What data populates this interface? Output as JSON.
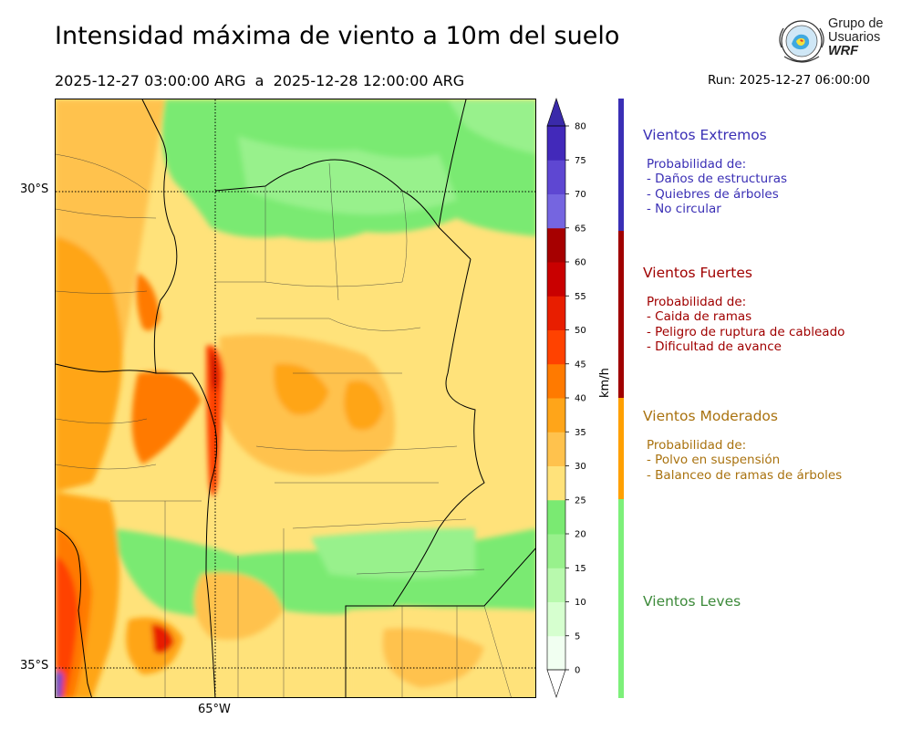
{
  "header": {
    "title": "Intensidad máxima de viento a 10m del suelo",
    "subtitle": "2025-12-27 03:00:00 ARG  a  2025-12-28 12:00:00 ARG",
    "run": "Run: 2025-12-27 06:00:00"
  },
  "logo": {
    "line1": "Grupo de",
    "line2": "Usuarios",
    "line3": "WRF"
  },
  "map": {
    "lat_labels": [
      "30°S",
      "35°S"
    ],
    "lon_labels": [
      "65°W"
    ]
  },
  "colorbar": {
    "unit": "km/h",
    "ticks": [
      "0",
      "5",
      "10",
      "15",
      "20",
      "25",
      "30",
      "35",
      "40",
      "45",
      "50",
      "55",
      "60",
      "65",
      "70",
      "75",
      "80"
    ],
    "colors": [
      "#f1fff1",
      "#d6ffcf",
      "#b8f9ad",
      "#98f18c",
      "#7aea72",
      "#ffe27a",
      "#ffc24d",
      "#ffa519",
      "#ff7a00",
      "#ff4200",
      "#e81e00",
      "#c90000",
      "#a60000",
      "#7565e0",
      "#5e47d2",
      "#4229ba"
    ]
  },
  "legend": {
    "categories": [
      {
        "title": "Vientos Extremos",
        "color": "#3a2fb5",
        "lines": "Probabilidad de:\n- Daños de estructuras\n- Quiebres de árboles\n- No circular"
      },
      {
        "title": "Vientos Fuertes",
        "color": "#a00000",
        "lines": "Probabilidad de:\n- Caida de ramas\n- Peligro de ruptura de cableado\n- Dificultad de avance"
      },
      {
        "title": "Vientos Moderados",
        "color": "#a9720f",
        "lines": "Probabilidad de:\n- Polvo en suspensión\n- Balanceo de ramas de árboles"
      },
      {
        "title": "Vientos Leves",
        "color": "#3d8a3a",
        "lines": ""
      }
    ],
    "bar_colors": [
      "#3a2fb5",
      "#a00000",
      "#ffa000",
      "#7df07a"
    ]
  }
}
